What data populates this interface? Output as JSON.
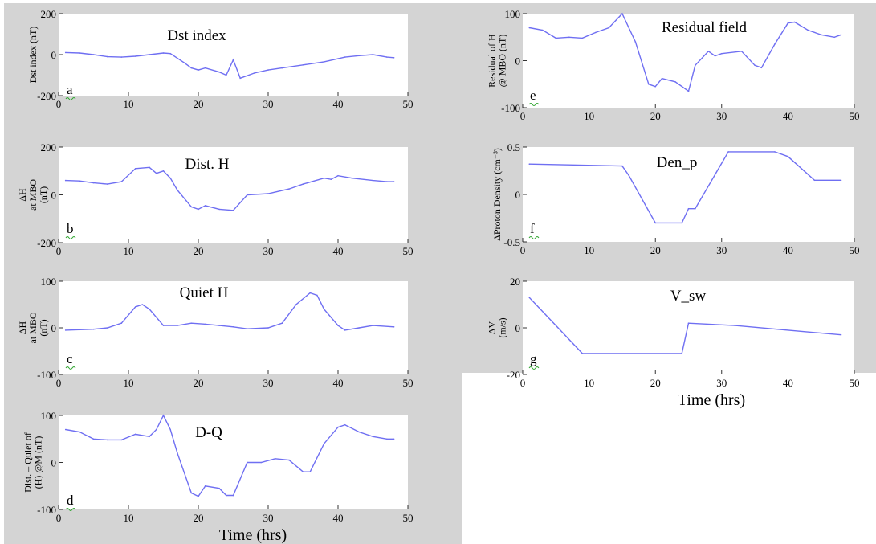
{
  "colors": {
    "background": "#d4d4d4",
    "plot_background": "#ffffff",
    "line": "#6f6ff2"
  },
  "x_axis_title": "Time (hrs)",
  "chart_data": [
    {
      "id": "a",
      "type": "line",
      "title": "Dst index",
      "letter": "a",
      "ylabel": [
        "Dst index (nT)"
      ],
      "xlim": [
        0,
        50
      ],
      "ylim": [
        -200,
        200
      ],
      "xticks": [
        0,
        10,
        20,
        30,
        40,
        50
      ],
      "yticks": [
        -200,
        0,
        200
      ],
      "x": [
        1,
        3,
        5,
        7,
        9,
        11,
        13,
        15,
        16,
        18,
        19,
        20,
        21,
        23,
        24,
        25,
        26,
        28,
        30,
        32,
        35,
        38,
        40,
        41,
        43,
        45,
        47,
        48
      ],
      "y": [
        10,
        8,
        0,
        -10,
        -12,
        -8,
        0,
        8,
        5,
        -40,
        -65,
        -75,
        -65,
        -85,
        -100,
        -25,
        -115,
        -90,
        -75,
        -65,
        -50,
        -35,
        -20,
        -12,
        -5,
        0,
        -12,
        -15
      ]
    },
    {
      "id": "e",
      "type": "line",
      "title": "Residual field",
      "letter": "e",
      "ylabel": [
        "Residual of H",
        "@ MBO (nT)"
      ],
      "xlim": [
        0,
        50
      ],
      "ylim": [
        -100,
        100
      ],
      "xticks": [
        0,
        10,
        20,
        30,
        40,
        50
      ],
      "yticks": [
        -100,
        0,
        100
      ],
      "x": [
        1,
        3,
        5,
        7,
        9,
        11,
        13,
        15,
        17,
        19,
        20,
        21,
        23,
        25,
        26,
        28,
        29,
        30,
        33,
        35,
        36,
        38,
        40,
        41,
        43,
        45,
        47,
        48
      ],
      "y": [
        70,
        65,
        48,
        50,
        48,
        60,
        70,
        100,
        40,
        -50,
        -55,
        -38,
        -45,
        -65,
        -10,
        20,
        10,
        15,
        20,
        -10,
        -15,
        35,
        80,
        82,
        65,
        55,
        50,
        55
      ]
    },
    {
      "id": "b",
      "type": "line",
      "title": "Dist. H",
      "letter": "b",
      "ylabel": [
        "ΔH",
        "at MBO",
        "(nT)"
      ],
      "xlim": [
        0,
        50
      ],
      "ylim": [
        -200,
        200
      ],
      "xticks": [
        0,
        10,
        20,
        30,
        40,
        50
      ],
      "yticks": [
        -200,
        0,
        200
      ],
      "x": [
        1,
        3,
        5,
        7,
        9,
        11,
        13,
        14,
        15,
        16,
        17,
        19,
        20,
        21,
        23,
        25,
        27,
        30,
        33,
        35,
        38,
        39,
        40,
        42,
        45,
        47,
        48
      ],
      "y": [
        60,
        58,
        50,
        45,
        55,
        110,
        115,
        90,
        100,
        70,
        20,
        -50,
        -60,
        -45,
        -60,
        -65,
        0,
        5,
        25,
        45,
        70,
        65,
        80,
        70,
        60,
        55,
        55
      ]
    },
    {
      "id": "f",
      "type": "line",
      "title": "Den_p",
      "letter": "f",
      "ylabel": [
        "ΔProton Density (cm⁻³)"
      ],
      "xlim": [
        0,
        50
      ],
      "ylim": [
        -0.5,
        0.5
      ],
      "xticks": [
        0,
        10,
        20,
        30,
        40,
        50
      ],
      "yticks": [
        -0.5,
        0,
        0.5
      ],
      "x": [
        1,
        15,
        16,
        20,
        24,
        25,
        26,
        31,
        38,
        40,
        44,
        48
      ],
      "y": [
        0.32,
        0.3,
        0.2,
        -0.3,
        -0.3,
        -0.15,
        -0.15,
        0.45,
        0.45,
        0.4,
        0.15,
        0.15
      ]
    },
    {
      "id": "c",
      "type": "line",
      "title": "Quiet H",
      "letter": "c",
      "ylabel": [
        "ΔH",
        "at MBO",
        "(nT)"
      ],
      "xlim": [
        0,
        50
      ],
      "ylim": [
        -100,
        100
      ],
      "xticks": [
        0,
        10,
        20,
        30,
        40,
        50
      ],
      "yticks": [
        -100,
        0,
        100
      ],
      "x": [
        1,
        3,
        5,
        7,
        9,
        11,
        12,
        13,
        15,
        17,
        19,
        21,
        23,
        25,
        27,
        30,
        32,
        34,
        36,
        37,
        38,
        40,
        41,
        43,
        45,
        48
      ],
      "y": [
        -5,
        -4,
        -3,
        0,
        10,
        45,
        50,
        40,
        5,
        5,
        10,
        8,
        5,
        2,
        -2,
        0,
        10,
        50,
        75,
        70,
        40,
        5,
        -5,
        0,
        5,
        2
      ]
    },
    {
      "id": "g",
      "type": "line",
      "title": "V_sw",
      "letter": "g",
      "ylabel": [
        "ΔV",
        "(m/s)"
      ],
      "xlim": [
        0,
        50
      ],
      "ylim": [
        -20,
        20
      ],
      "xticks": [
        0,
        10,
        20,
        30,
        40,
        50
      ],
      "yticks": [
        -20,
        0,
        20
      ],
      "x": [
        1,
        9,
        24,
        25,
        32,
        40,
        48
      ],
      "y": [
        13,
        -11,
        -11,
        2,
        1,
        -1,
        -3
      ]
    },
    {
      "id": "d",
      "type": "line",
      "title": "D-Q",
      "letter": "d",
      "ylabel": [
        "Dist. – Quiet of",
        "(H) @M (nT)"
      ],
      "xlim": [
        0,
        50
      ],
      "ylim": [
        -100,
        100
      ],
      "xticks": [
        0,
        10,
        20,
        30,
        40,
        50
      ],
      "yticks": [
        -100,
        0,
        100
      ],
      "x": [
        1,
        3,
        5,
        7,
        9,
        11,
        13,
        14,
        15,
        16,
        17,
        19,
        20,
        21,
        23,
        24,
        25,
        27,
        29,
        31,
        33,
        35,
        36,
        38,
        40,
        41,
        43,
        45,
        47,
        48
      ],
      "y": [
        70,
        65,
        50,
        48,
        48,
        60,
        55,
        70,
        100,
        70,
        20,
        -65,
        -72,
        -50,
        -55,
        -70,
        -70,
        0,
        0,
        8,
        5,
        -20,
        -20,
        40,
        75,
        80,
        65,
        55,
        50,
        50
      ]
    }
  ]
}
